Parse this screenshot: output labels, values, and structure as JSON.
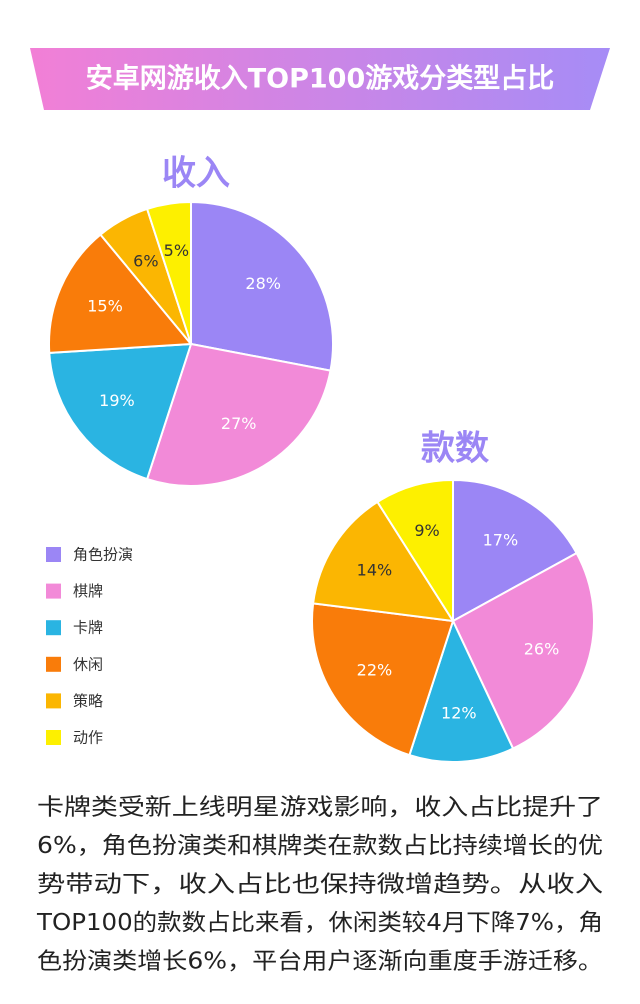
{
  "header": {
    "title": "安卓网游收入TOP100游戏分类型占比"
  },
  "chart_data": [
    {
      "type": "pie",
      "title": "收入",
      "categories": [
        "角色扮演",
        "棋牌",
        "卡牌",
        "休闲",
        "策略",
        "动作"
      ],
      "values": [
        28,
        27,
        19,
        15,
        6,
        5
      ],
      "value_labels": [
        "28%",
        "27%",
        "19%",
        "15%",
        "6%",
        "5%"
      ],
      "colors": [
        "#9b86f5",
        "#f28ad8",
        "#2ab4e2",
        "#f97c0a",
        "#fbb602",
        "#fdf000"
      ]
    },
    {
      "type": "pie",
      "title": "款数",
      "categories": [
        "角色扮演",
        "棋牌",
        "卡牌",
        "休闲",
        "策略",
        "动作"
      ],
      "values": [
        17,
        26,
        12,
        22,
        14,
        9
      ],
      "value_labels": [
        "17%",
        "26%",
        "12%",
        "22%",
        "14%",
        "9%"
      ],
      "colors": [
        "#9b86f5",
        "#f28ad8",
        "#2ab4e2",
        "#f97c0a",
        "#fbb602",
        "#fdf000"
      ]
    }
  ],
  "text": [
    "卡牌类受新上线明星游戏影响，收入占比提升了",
    "6%，角色扮演类和棋牌类在款数占比持续增长的优",
    "势带动下，收入占比也保持微增趋势。从收入",
    "TOP100的款数占比来看，休闲类较4月下降7%，角",
    "色扮演类增长6%，平台用户逐渐向重度手游迁移。"
  ]
}
